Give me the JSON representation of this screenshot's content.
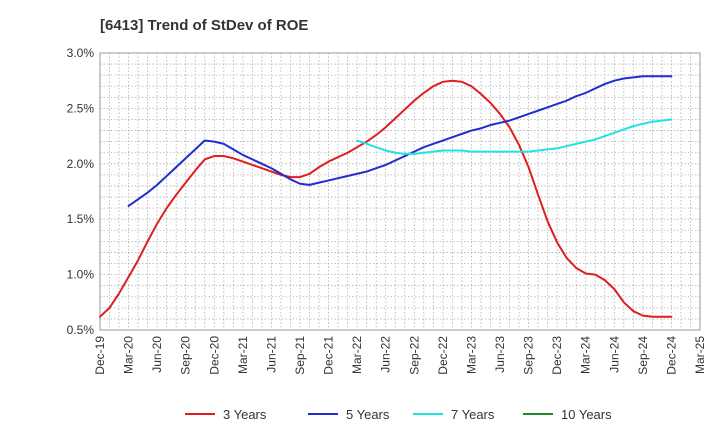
{
  "chart_data": {
    "type": "line",
    "title": "[6413]  Trend of StDev of ROE",
    "xlabel": "",
    "ylabel": "",
    "ylim": [
      0.5,
      3.0
    ],
    "xlim": [
      "2019-12",
      "2025-03"
    ],
    "yticks": [
      0.5,
      1.0,
      1.5,
      2.0,
      2.5,
      3.0
    ],
    "ytick_labels": [
      "0.5%",
      "1.0%",
      "1.5%",
      "2.0%",
      "2.5%",
      "3.0%"
    ],
    "xticks": [
      "2019-12",
      "2020-03",
      "2020-06",
      "2020-09",
      "2020-12",
      "2021-03",
      "2021-06",
      "2021-09",
      "2021-12",
      "2022-03",
      "2022-06",
      "2022-09",
      "2022-12",
      "2023-03",
      "2023-06",
      "2023-09",
      "2023-12",
      "2024-03",
      "2024-06",
      "2024-09",
      "2024-12",
      "2025-03"
    ],
    "xtick_labels": [
      "Dec-19",
      "Mar-20",
      "Jun-20",
      "Sep-20",
      "Dec-20",
      "Mar-21",
      "Jun-21",
      "Sep-21",
      "Dec-21",
      "Mar-22",
      "Jun-22",
      "Sep-22",
      "Dec-22",
      "Mar-23",
      "Jun-23",
      "Sep-23",
      "Dec-23",
      "Mar-24",
      "Jun-24",
      "Sep-24",
      "Dec-24",
      "Mar-25"
    ],
    "grid": "dotted vertical and horizontal",
    "legend_position": "bottom",
    "series": [
      {
        "name": "3 Years",
        "color": "#dd1f1f",
        "x": [
          "2019-12",
          "2020-01",
          "2020-02",
          "2020-03",
          "2020-04",
          "2020-05",
          "2020-06",
          "2020-07",
          "2020-08",
          "2020-09",
          "2020-10",
          "2020-11",
          "2020-12",
          "2021-01",
          "2021-02",
          "2021-03",
          "2021-04",
          "2021-05",
          "2021-06",
          "2021-07",
          "2021-08",
          "2021-09",
          "2021-10",
          "2021-11",
          "2021-12",
          "2022-01",
          "2022-02",
          "2022-03",
          "2022-04",
          "2022-05",
          "2022-06",
          "2022-07",
          "2022-08",
          "2022-09",
          "2022-10",
          "2022-11",
          "2022-12",
          "2023-01",
          "2023-02",
          "2023-03",
          "2023-04",
          "2023-05",
          "2023-06",
          "2023-07",
          "2023-08",
          "2023-09",
          "2023-10",
          "2023-11",
          "2023-12",
          "2024-01",
          "2024-02",
          "2024-03",
          "2024-04",
          "2024-05",
          "2024-06",
          "2024-07",
          "2024-08",
          "2024-09",
          "2024-10",
          "2024-11",
          "2024-12"
        ],
        "values": [
          0.62,
          0.7,
          0.83,
          0.98,
          1.13,
          1.3,
          1.46,
          1.6,
          1.72,
          1.83,
          1.94,
          2.04,
          2.07,
          2.07,
          2.05,
          2.02,
          1.99,
          1.96,
          1.93,
          1.9,
          1.88,
          1.88,
          1.91,
          1.97,
          2.02,
          2.06,
          2.1,
          2.15,
          2.2,
          2.26,
          2.33,
          2.41,
          2.49,
          2.57,
          2.64,
          2.7,
          2.74,
          2.75,
          2.74,
          2.7,
          2.63,
          2.55,
          2.45,
          2.33,
          2.17,
          1.97,
          1.72,
          1.48,
          1.29,
          1.15,
          1.06,
          1.01,
          1.0,
          0.95,
          0.87,
          0.75,
          0.67,
          0.63,
          0.62,
          0.62,
          0.62
        ],
        "x_end": "2024-12"
      },
      {
        "name": "5 Years",
        "color": "#1f2fcc",
        "x": [
          "2020-03",
          "2020-04",
          "2020-05",
          "2020-06",
          "2020-07",
          "2020-08",
          "2020-09",
          "2020-10",
          "2020-11",
          "2020-12",
          "2021-01",
          "2021-02",
          "2021-03",
          "2021-04",
          "2021-05",
          "2021-06",
          "2021-07",
          "2021-08",
          "2021-09",
          "2021-10",
          "2021-11",
          "2021-12",
          "2022-01",
          "2022-02",
          "2022-03",
          "2022-04",
          "2022-05",
          "2022-06",
          "2022-07",
          "2022-08",
          "2022-09",
          "2022-10",
          "2022-11",
          "2022-12",
          "2023-01",
          "2023-02",
          "2023-03",
          "2023-04",
          "2023-05",
          "2023-06",
          "2023-07",
          "2023-08",
          "2023-09",
          "2023-10",
          "2023-11",
          "2023-12",
          "2024-01",
          "2024-02",
          "2024-03",
          "2024-04",
          "2024-05",
          "2024-06",
          "2024-07",
          "2024-08",
          "2024-09",
          "2024-10",
          "2024-11",
          "2024-12"
        ],
        "values": [
          1.62,
          1.68,
          1.74,
          1.81,
          1.89,
          1.97,
          2.05,
          2.13,
          2.21,
          2.2,
          2.18,
          2.13,
          2.08,
          2.04,
          2.0,
          1.96,
          1.91,
          1.86,
          1.82,
          1.81,
          1.83,
          1.85,
          1.87,
          1.89,
          1.91,
          1.93,
          1.96,
          1.99,
          2.03,
          2.07,
          2.11,
          2.15,
          2.18,
          2.21,
          2.24,
          2.27,
          2.3,
          2.32,
          2.35,
          2.37,
          2.39,
          2.42,
          2.45,
          2.48,
          2.51,
          2.54,
          2.57,
          2.61,
          2.64,
          2.68,
          2.72,
          2.75,
          2.77,
          2.78,
          2.79,
          2.79,
          2.79,
          2.79
        ],
        "x_end": "2024-12"
      },
      {
        "name": "7 Years",
        "color": "#22e3e3",
        "x": [
          "2022-03",
          "2022-04",
          "2022-05",
          "2022-06",
          "2022-07",
          "2022-08",
          "2022-09",
          "2022-10",
          "2022-11",
          "2022-12",
          "2023-01",
          "2023-02",
          "2023-03",
          "2023-04",
          "2023-05",
          "2023-06",
          "2023-07",
          "2023-08",
          "2023-09",
          "2023-10",
          "2023-11",
          "2023-12",
          "2024-01",
          "2024-02",
          "2024-03",
          "2024-04",
          "2024-05",
          "2024-06",
          "2024-07",
          "2024-08",
          "2024-09",
          "2024-10",
          "2024-11",
          "2024-12"
        ],
        "values": [
          2.21,
          2.18,
          2.15,
          2.12,
          2.1,
          2.09,
          2.09,
          2.1,
          2.11,
          2.12,
          2.12,
          2.12,
          2.11,
          2.11,
          2.11,
          2.11,
          2.11,
          2.11,
          2.11,
          2.12,
          2.13,
          2.14,
          2.16,
          2.18,
          2.2,
          2.22,
          2.25,
          2.28,
          2.31,
          2.34,
          2.36,
          2.38,
          2.39,
          2.4
        ],
        "x_end": "2024-12"
      },
      {
        "name": "10 Years",
        "color": "#1f8a1f",
        "x": [],
        "values": []
      }
    ]
  }
}
